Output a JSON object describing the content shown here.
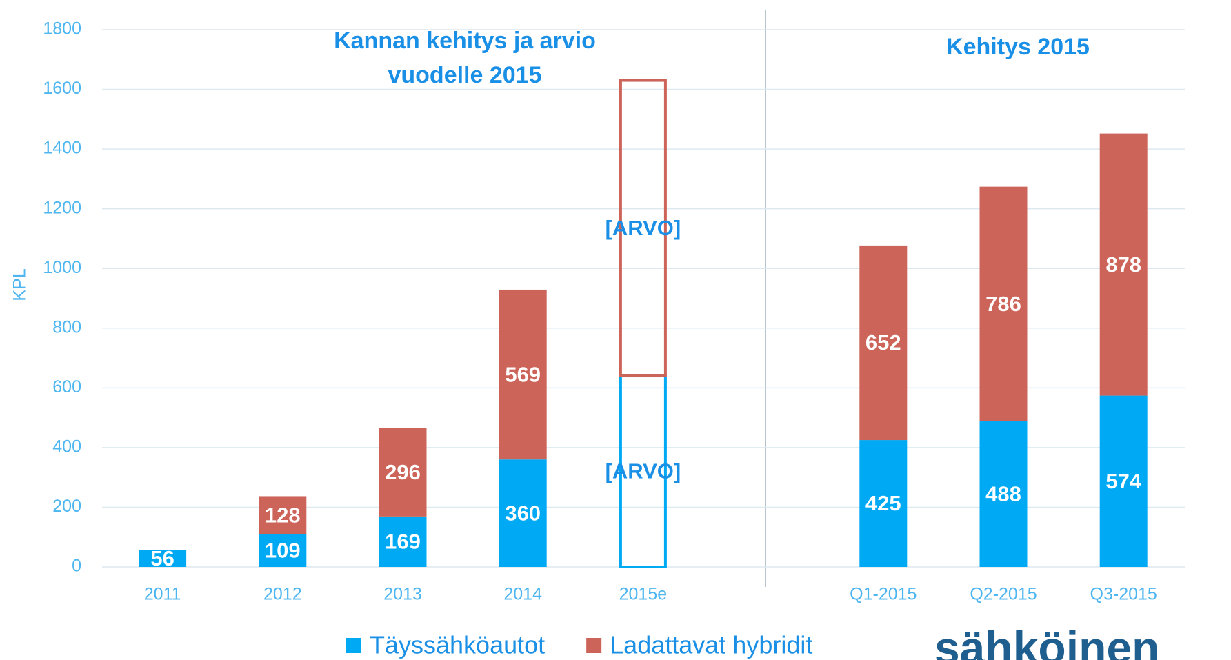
{
  "chart_data": {
    "type": "stacked_bar",
    "annotations": [
      "Kannan kehitys ja arvio",
      "vuodelle 2015",
      "Kehitys 2015"
    ],
    "y_label": "KPL",
    "logo": "sähköinen",
    "categories": [
      "2011",
      "2012",
      "2013",
      "2014",
      "2015e",
      null,
      "Q1-2015",
      "Q2-2015",
      "Q3-2015"
    ],
    "outline": [
      false,
      false,
      false,
      false,
      true,
      false,
      false,
      false,
      false
    ],
    "series": [
      {
        "name": "Täyssähköautot",
        "color": "#00a9f4",
        "values": [
          56,
          109,
          169,
          360,
          640,
          null,
          425,
          488,
          574
        ],
        "value_labels": [
          "56",
          "109",
          "169",
          "360",
          "[ARVO]",
          null,
          "425",
          "488",
          "574"
        ]
      },
      {
        "name": "Ladattavat hybridit",
        "color": "#cd6459",
        "values": [
          null,
          128,
          296,
          569,
          990,
          null,
          652,
          786,
          878
        ],
        "value_labels": [
          null,
          "128",
          "296",
          "569",
          "[ARVO]",
          null,
          "652",
          "786",
          "878"
        ]
      }
    ],
    "ylim": [
      0,
      1800
    ],
    "yticks": [
      0,
      200,
      400,
      600,
      800,
      1000,
      1200,
      1400,
      1600,
      1800
    ],
    "grid": true,
    "legend": "bottom"
  }
}
